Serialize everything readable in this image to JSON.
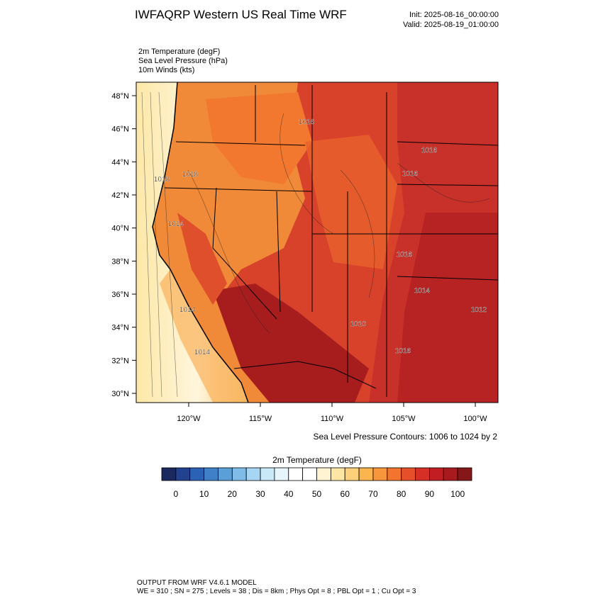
{
  "header": {
    "title": "IWFAQRP Western US Real Time WRF",
    "init": "Init: 2025-08-16_00:00:00",
    "valid": "Valid: 2025-08-19_01:00:00"
  },
  "fields": [
    "2m Temperature   (degF)",
    "Sea Level Pressure   (hPa)",
    "10m Winds   (kts)"
  ],
  "map": {
    "lat_ticks": [
      {
        "value": 30,
        "label": "30°N"
      },
      {
        "value": 32,
        "label": "32°N"
      },
      {
        "value": 34,
        "label": "34°N"
      },
      {
        "value": 36,
        "label": "36°N"
      },
      {
        "value": 38,
        "label": "38°N"
      },
      {
        "value": 40,
        "label": "40°N"
      },
      {
        "value": 42,
        "label": "42°N"
      },
      {
        "value": 44,
        "label": "44°N"
      },
      {
        "value": 46,
        "label": "46°N"
      },
      {
        "value": 48,
        "label": "48°N"
      }
    ],
    "lon_ticks": [
      {
        "value": -120,
        "label": "120°W"
      },
      {
        "value": -115,
        "label": "115°W"
      },
      {
        "value": -110,
        "label": "110°W"
      },
      {
        "value": -105,
        "label": "105°W"
      },
      {
        "value": -100,
        "label": "100°W"
      }
    ],
    "contour_labels": [
      "1018",
      "1018",
      "1014",
      "1014",
      "1014",
      "1016",
      "1016",
      "1016",
      "1016",
      "1014",
      "1012",
      "1010",
      "1016"
    ],
    "contour_note": "Sea Level Pressure Contours: 1006 to 1024 by 2"
  },
  "colorbar": {
    "title": "2m Temperature  (degF)",
    "colors": [
      "#1b2a5e",
      "#22428f",
      "#2c62b5",
      "#3f80c8",
      "#5a9fd8",
      "#7fbde8",
      "#a6d6f3",
      "#c9e8f8",
      "#e6f5fc",
      "#ffffff",
      "#ffffff",
      "#fff3d2",
      "#fde6a4",
      "#fdd07a",
      "#fbb54e",
      "#f8963c",
      "#f2742e",
      "#e54f2a",
      "#d62f26",
      "#c11d22",
      "#a81a1e",
      "#861719"
    ],
    "ticks": [
      0,
      10,
      20,
      30,
      40,
      50,
      60,
      70,
      80,
      90,
      100
    ]
  },
  "footer": [
    "OUTPUT FROM WRF V4.6.1 MODEL",
    "WE = 310 ; SN = 275 ; Levels = 38 ; Dis = 8km ; Phys Opt = 8 ; PBL Opt = 1 ; Cu Opt = 3"
  ]
}
